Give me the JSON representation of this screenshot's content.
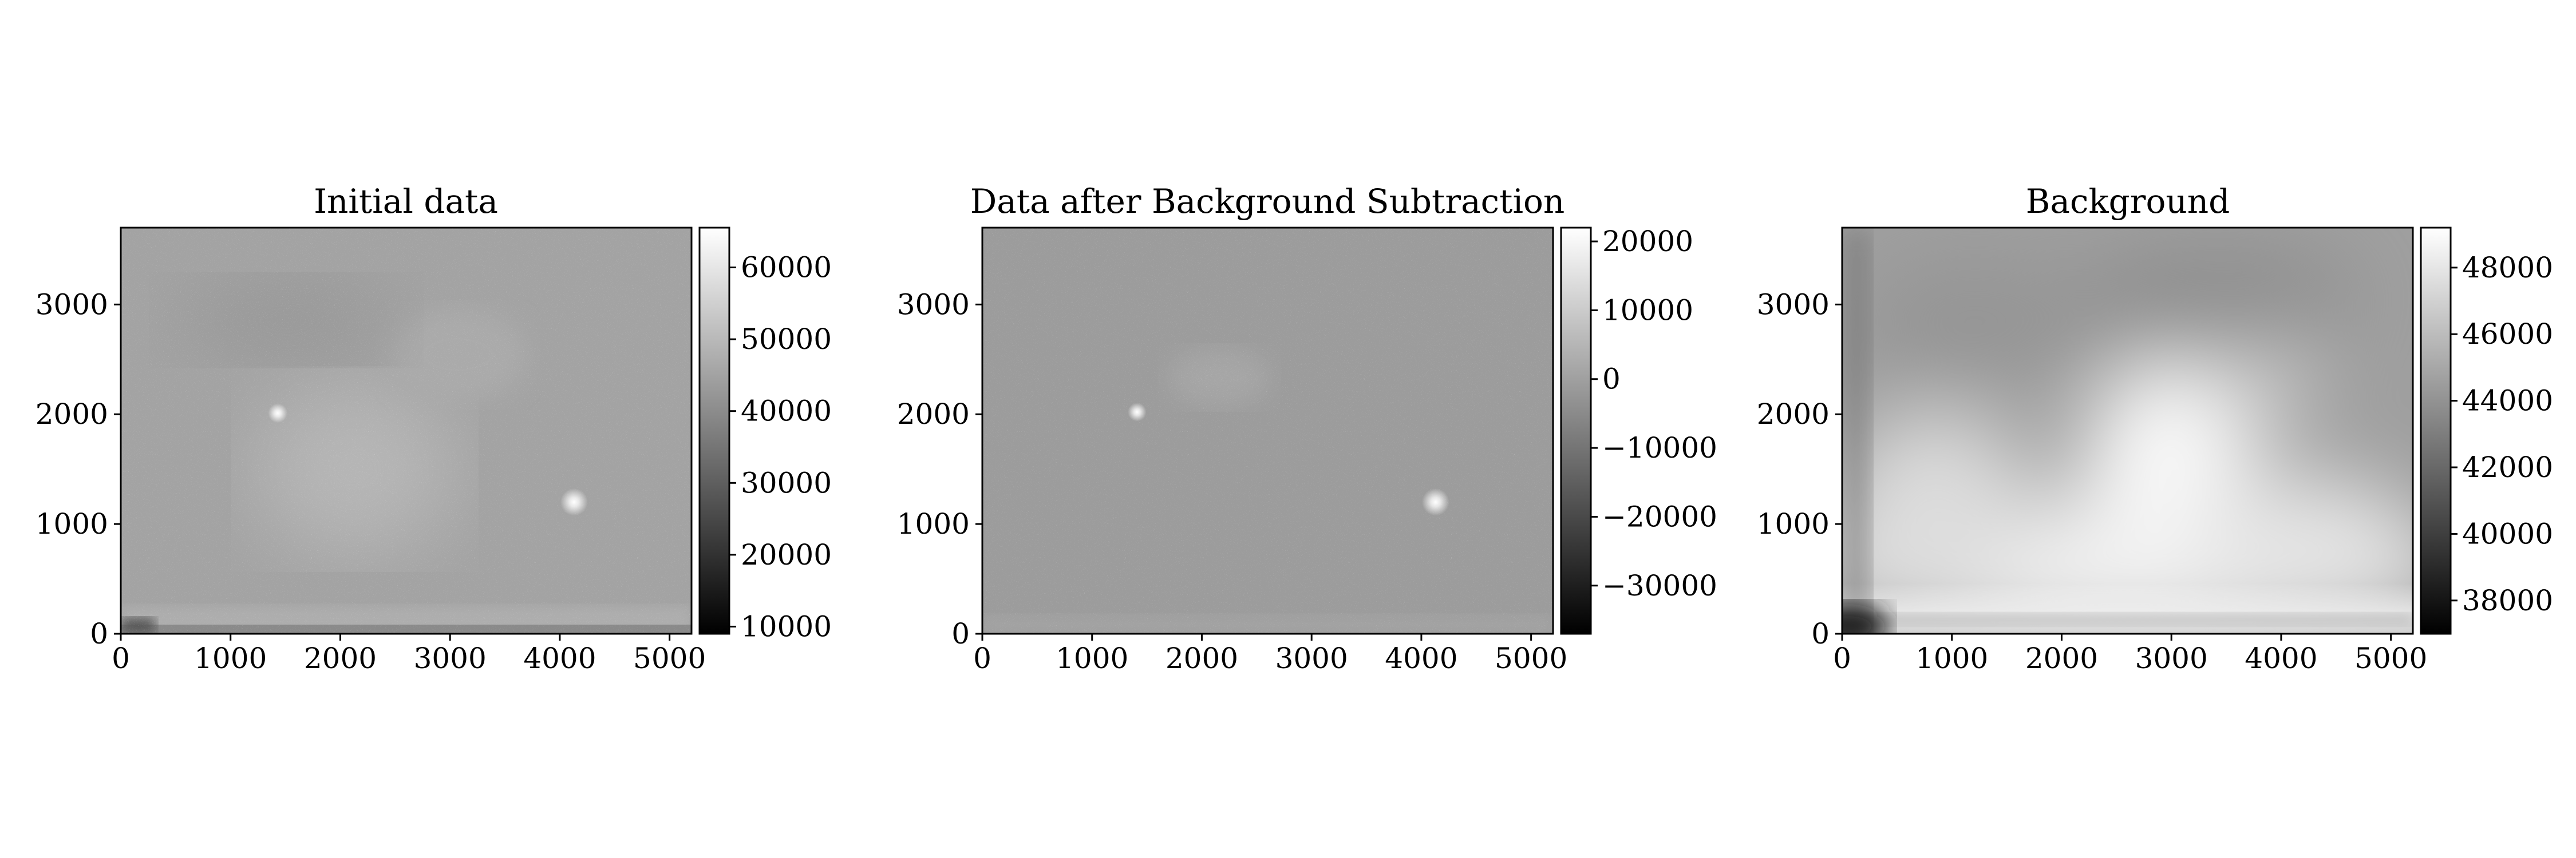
{
  "chart_data": [
    {
      "type": "heatmap",
      "title": "Initial data",
      "xlim": [
        0,
        5200
      ],
      "ylim": [
        0,
        3700
      ],
      "xticks": [
        0,
        1000,
        2000,
        3000,
        4000,
        5000
      ],
      "yticks": [
        0,
        1000,
        2000,
        3000
      ],
      "xtick_labels": [
        "0",
        "1000",
        "2000",
        "3000",
        "4000",
        "5000"
      ],
      "ytick_labels": [
        "0",
        "1000",
        "2000",
        "3000"
      ],
      "colormap": "gray",
      "colorbar": {
        "range": [
          9000,
          65535
        ],
        "ticks": [
          10000,
          20000,
          30000,
          40000,
          50000,
          60000
        ],
        "tick_labels": [
          "10000",
          "20000",
          "30000",
          "40000",
          "50000",
          "60000"
        ]
      },
      "image": {
        "base_gray": "#a3a3a3",
        "bright_sources": [
          {
            "x": 4130,
            "y": 1200,
            "strength": 1.0
          },
          {
            "x": 1430,
            "y": 2010,
            "strength": 0.5
          }
        ]
      }
    },
    {
      "type": "heatmap",
      "title": "Data after Background Subtraction",
      "xlim": [
        0,
        5200
      ],
      "ylim": [
        0,
        3700
      ],
      "xticks": [
        0,
        1000,
        2000,
        3000,
        4000,
        5000
      ],
      "yticks": [
        0,
        1000,
        2000,
        3000
      ],
      "xtick_labels": [
        "0",
        "1000",
        "2000",
        "3000",
        "4000",
        "5000"
      ],
      "ytick_labels": [
        "0",
        "1000",
        "2000",
        "3000"
      ],
      "colormap": "gray",
      "colorbar": {
        "range": [
          -37000,
          22000
        ],
        "ticks": [
          -30000,
          -20000,
          -10000,
          0,
          10000,
          20000
        ],
        "tick_labels": [
          "−30000",
          "−20000",
          "−10000",
          "0",
          "10000",
          "20000"
        ]
      },
      "image": {
        "base_gray": "#9c9c9c",
        "bright_sources": [
          {
            "x": 4130,
            "y": 1200,
            "strength": 1.0
          },
          {
            "x": 1410,
            "y": 2020,
            "strength": 0.45
          }
        ]
      }
    },
    {
      "type": "heatmap",
      "title": "Background",
      "xlim": [
        0,
        5200
      ],
      "ylim": [
        0,
        3700
      ],
      "xticks": [
        0,
        1000,
        2000,
        3000,
        4000,
        5000
      ],
      "yticks": [
        0,
        1000,
        2000,
        3000
      ],
      "xtick_labels": [
        "0",
        "1000",
        "2000",
        "3000",
        "4000",
        "5000"
      ],
      "ytick_labels": [
        "0",
        "1000",
        "2000",
        "3000"
      ],
      "colormap": "gray",
      "colorbar": {
        "range": [
          37000,
          49200
        ],
        "ticks": [
          38000,
          40000,
          42000,
          44000,
          46000,
          48000
        ],
        "tick_labels": [
          "38000",
          "40000",
          "42000",
          "44000",
          "46000",
          "48000"
        ]
      },
      "image": {
        "base_gray": "#9f9f9f"
      }
    }
  ]
}
